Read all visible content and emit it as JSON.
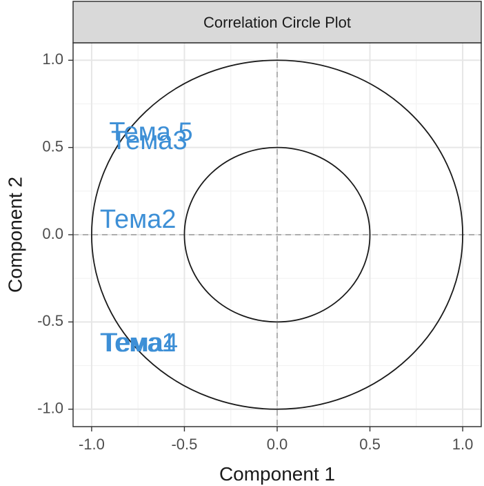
{
  "chart_data": {
    "type": "scatter",
    "title": "Correlation Circle Plot",
    "xlabel": "Component 1",
    "ylabel": "Component 2",
    "xlim": [
      -1.1,
      1.1
    ],
    "ylim": [
      -1.1,
      1.1
    ],
    "x_ticks": [
      -1.0,
      -0.5,
      0.0,
      0.5,
      1.0
    ],
    "y_ticks": [
      -1.0,
      -0.5,
      0.0,
      0.5,
      1.0
    ],
    "x_tick_labels": [
      "-1.0",
      "-0.5",
      "0.0",
      "0.5",
      "1.0"
    ],
    "y_tick_labels": [
      "-1.0",
      "-0.5",
      "0.0",
      "0.5",
      "1.0"
    ],
    "grid": true,
    "circles": [
      {
        "center": [
          0,
          0
        ],
        "radius": 1.0
      },
      {
        "center": [
          0,
          0
        ],
        "radius": 0.5
      }
    ],
    "reference_lines": {
      "x": 0,
      "y": 0,
      "style": "dashed"
    },
    "points": [
      {
        "label": "Тема 5",
        "x": -0.68,
        "y": 0.58
      },
      {
        "label": "Тема3",
        "x": -0.69,
        "y": 0.53
      },
      {
        "label": "Тема2",
        "x": -0.75,
        "y": 0.08
      },
      {
        "label": "Тема1",
        "x": -0.75,
        "y": -0.63
      },
      {
        "label": "Тема4",
        "x": -0.74,
        "y": -0.63
      }
    ]
  },
  "colors": {
    "label_text": "#3d8fd6",
    "strip_fill": "#d9d9d9",
    "panel_border": "#333333",
    "grid_major": "#e6e6e6",
    "grid_minor": "#f2f2f2",
    "circle": "#1a1a1a",
    "reference_line": "#9a9a9a",
    "axis_text": "#4d4d4d",
    "title_text": "#1a1a1a"
  }
}
